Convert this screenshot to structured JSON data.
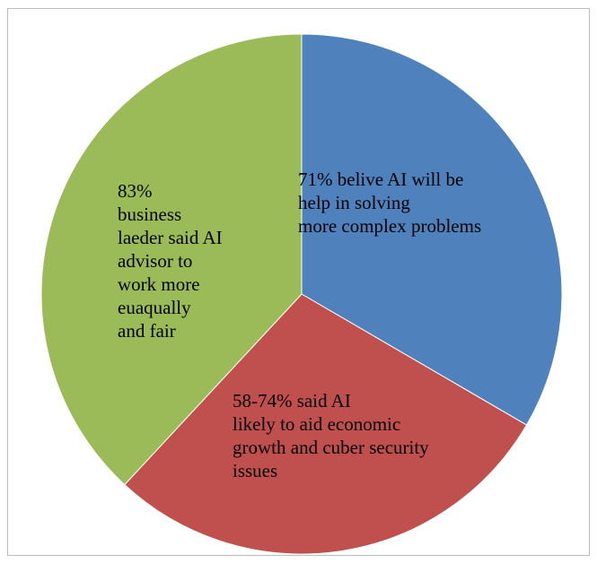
{
  "chart_data": {
    "type": "pie",
    "title": "",
    "legend": "none",
    "start_angle_deg": 0,
    "direction": "clockwise",
    "slices": [
      {
        "label": "71% belive AI will be\nhelp in solving\nmore complex problems",
        "value": 33.4,
        "color": "#4F81BD"
      },
      {
        "label": "58-74% said AI\nlikely to aid economic\ngrowth and cuber security\nissues",
        "value": 28.5,
        "color": "#C0504D"
      },
      {
        "label": "83%\nbusiness\nlaeder said AI\nadvisor to\nwork more\neuaqually\nand fair",
        "value": 38.1,
        "color": "#9BBB59"
      }
    ]
  }
}
